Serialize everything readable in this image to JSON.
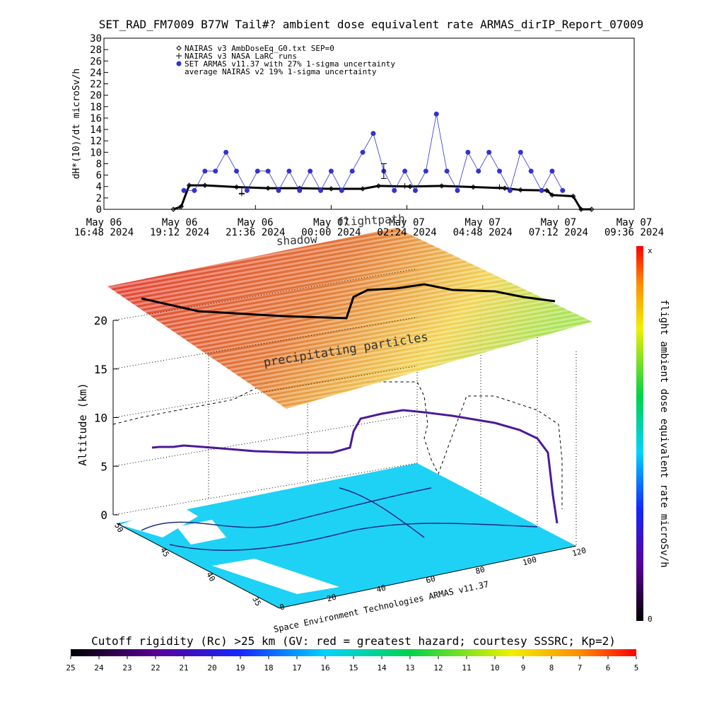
{
  "chart_data": [
    {
      "type": "line",
      "title": "SET_RAD_FM7009  B77W Tail#? ambient dose equivalent rate ARMAS_dirIP_Report_07009",
      "ylabel": "dH*(10)/dt microSv/h",
      "ylim": [
        0,
        30
      ],
      "yticks": [
        0,
        2,
        4,
        6,
        8,
        10,
        12,
        14,
        16,
        18,
        20,
        22,
        24,
        26,
        28,
        30
      ],
      "xlim": [
        "2024-05-06T16:48",
        "2024-05-07T09:36"
      ],
      "xticks": [
        {
          "value": "2024-05-06T16:48",
          "label": [
            "May 06",
            "16:48 2024"
          ]
        },
        {
          "value": "2024-05-06T19:12",
          "label": [
            "May 06",
            "19:12 2024"
          ]
        },
        {
          "value": "2024-05-06T21:36",
          "label": [
            "May 06",
            "21:36 2024"
          ]
        },
        {
          "value": "2024-05-07T00:00",
          "label": [
            "May 07",
            "00:00 2024"
          ]
        },
        {
          "value": "2024-05-07T02:24",
          "label": [
            "May 07",
            "02:24 2024"
          ]
        },
        {
          "value": "2024-05-07T04:48",
          "label": [
            "May 07",
            "04:48 2024"
          ]
        },
        {
          "value": "2024-05-07T07:12",
          "label": [
            "May 07",
            "07:12 2024"
          ]
        },
        {
          "value": "2024-05-07T09:36",
          "label": [
            "May 07",
            "09:36 2024"
          ]
        }
      ],
      "series": [
        {
          "name": "NAIRAS v3 AmbDoseEq_G0.txt SEP=0",
          "color": "#000000",
          "marker": "diamond",
          "x": [
            "2024-05-06T19:00",
            "2024-05-06T19:15",
            "2024-05-06T19:30",
            "2024-05-06T20:00",
            "2024-05-06T21:00",
            "2024-05-06T22:00",
            "2024-05-06T23:00",
            "2024-05-07T00:00",
            "2024-05-07T01:00",
            "2024-05-07T01:30",
            "2024-05-07T02:30",
            "2024-05-07T03:30",
            "2024-05-07T04:30",
            "2024-05-07T05:30",
            "2024-05-07T06:00",
            "2024-05-07T06:50",
            "2024-05-07T07:00",
            "2024-05-07T07:40",
            "2024-05-07T07:55",
            "2024-05-07T08:15"
          ],
          "values": [
            0,
            0.5,
            4.2,
            4.2,
            3.9,
            3.7,
            3.7,
            3.6,
            3.6,
            4.1,
            4.0,
            4.1,
            3.9,
            3.7,
            3.4,
            3.3,
            2.5,
            2.3,
            0,
            0
          ]
        },
        {
          "name": "NAIRAS v3 NASA LaRC runs",
          "color": "#000000",
          "marker": "plus",
          "x": [
            "2024-05-06T21:10",
            "2024-05-07T02:20",
            "2024-05-07T05:20"
          ],
          "values": [
            2.8,
            4.1,
            3.9
          ]
        },
        {
          "name": "SET ARMAS v11.37 with 27% 1-sigma uncertainty",
          "color": "#3333cc",
          "marker": "dot",
          "x": [
            "2024-05-06T19:20",
            "2024-05-06T19:40",
            "2024-05-06T20:00",
            "2024-05-06T20:20",
            "2024-05-06T20:40",
            "2024-05-06T21:00",
            "2024-05-06T21:20",
            "2024-05-06T21:40",
            "2024-05-06T22:00",
            "2024-05-06T22:20",
            "2024-05-06T22:40",
            "2024-05-06T23:00",
            "2024-05-06T23:20",
            "2024-05-06T23:40",
            "2024-05-07T00:00",
            "2024-05-07T00:20",
            "2024-05-07T00:40",
            "2024-05-07T01:00",
            "2024-05-07T01:20",
            "2024-05-07T01:40",
            "2024-05-07T02:00",
            "2024-05-07T02:20",
            "2024-05-07T02:40",
            "2024-05-07T03:00",
            "2024-05-07T03:20",
            "2024-05-07T03:40",
            "2024-05-07T04:00",
            "2024-05-07T04:20",
            "2024-05-07T04:40",
            "2024-05-07T05:00",
            "2024-05-07T05:20",
            "2024-05-07T05:40",
            "2024-05-07T06:00",
            "2024-05-07T06:20",
            "2024-05-07T06:40",
            "2024-05-07T07:00",
            "2024-05-07T07:20"
          ],
          "values": [
            3.3,
            3.3,
            6.7,
            6.7,
            10,
            6.7,
            3.3,
            6.7,
            6.7,
            3.3,
            6.7,
            3.3,
            6.7,
            3.3,
            6.7,
            3.3,
            6.7,
            10,
            13.3,
            6.7,
            3.3,
            6.7,
            3.3,
            6.7,
            16.7,
            6.7,
            3.3,
            10,
            6.7,
            10,
            6.7,
            3.3,
            10,
            6.7,
            3.3,
            6.7,
            3.3
          ]
        },
        {
          "name": "average NAIRAS v2 19% 1-sigma uncertainty",
          "color": "#000000",
          "marker": "errorbar",
          "x": [
            "2024-05-06T21:10",
            "2024-05-07T01:40"
          ],
          "values": [
            3.3,
            6.7
          ],
          "errors": [
            0.6,
            1.3
          ]
        }
      ]
    },
    {
      "type": "surface3d",
      "zlabel": "Altitude (km)",
      "zlim": [
        0,
        20
      ],
      "zticks": [
        0,
        5,
        10,
        15,
        20
      ],
      "latlim": [
        50,
        35
      ],
      "latticks": [
        50,
        45,
        40,
        35
      ],
      "lonlim": [
        0,
        120
      ],
      "lonticks": [
        0,
        20,
        40,
        60,
        80,
        100,
        120
      ],
      "annotations": [
        "shadow",
        "flightpath",
        "precipitating particles"
      ],
      "credit": "Space Environment Technologies ARMAS v11.37",
      "dose_colorbar": {
        "label": "flight ambient dose equivalent rate microSv/h",
        "ticks": [
          "x",
          "0"
        ]
      },
      "rigidity_colorbar": {
        "label": "Cutoff rigidity (Rc) >25 km (GV: red = greatest hazard; courtesy SSSRC; Kp=2)",
        "lim": [
          25,
          5
        ],
        "ticks": [
          25,
          24,
          23,
          22,
          21,
          20,
          19,
          18,
          17,
          16,
          15,
          14,
          13,
          12,
          11,
          10,
          9,
          8,
          7,
          6,
          5
        ]
      }
    }
  ]
}
